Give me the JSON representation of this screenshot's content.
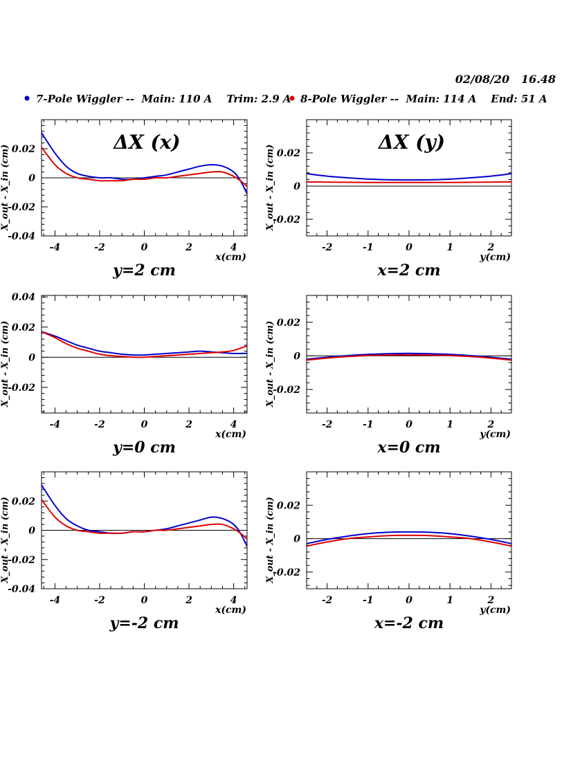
{
  "header": {
    "date_stamp": "02/08/20   16.48",
    "legend": [
      {
        "label": "7-Pole Wiggler --  Main: 110 A    Trim: 2.9 A",
        "color": "#0000cc"
      },
      {
        "label": "8-Pole Wiggler --  Main: 114 A    End: 51 A",
        "color": "#dd0000"
      }
    ]
  },
  "chart_data": [
    {
      "type": "line",
      "panel": "top-left",
      "title": "ΔX (x)",
      "caption": "y=2 cm",
      "xlabel": "x(cm)",
      "ylabel": "X_out - X_in (cm)",
      "xlim": [
        -4.6,
        4.6
      ],
      "ylim": [
        -0.04,
        0.04
      ],
      "xticks": [
        -4,
        -2,
        0,
        2,
        4
      ],
      "xtick_labels": [
        "-4",
        "-2",
        "0",
        "2",
        "4"
      ],
      "yticks": [
        -0.04,
        -0.02,
        0,
        0.02
      ],
      "ytick_labels": [
        "-0.04",
        "-0.02",
        "0",
        "0.02"
      ],
      "x": [
        -4.6,
        -4,
        -3.5,
        -3,
        -2.5,
        -2,
        -1.5,
        -1,
        -0.5,
        0,
        0.5,
        1,
        1.5,
        2,
        2.5,
        3,
        3.5,
        4,
        4.3,
        4.6
      ],
      "series": [
        {
          "name": "7-Pole Wiggler",
          "color": "#0000cc",
          "values": [
            0.031,
            0.017,
            0.008,
            0.003,
            0.001,
            0.0,
            0.0,
            -0.001,
            -0.001,
            0.0,
            0.001,
            0.002,
            0.004,
            0.006,
            0.008,
            0.009,
            0.008,
            0.004,
            -0.002,
            -0.011
          ]
        },
        {
          "name": "8-Pole Wiggler",
          "color": "#dd0000",
          "values": [
            0.021,
            0.009,
            0.003,
            0.0,
            -0.001,
            -0.002,
            -0.002,
            -0.002,
            -0.001,
            -0.001,
            0.0,
            0.0,
            0.001,
            0.002,
            0.003,
            0.004,
            0.004,
            0.001,
            -0.002,
            -0.006
          ]
        }
      ]
    },
    {
      "type": "line",
      "panel": "top-right",
      "title": "ΔX (y)",
      "caption": "x=2 cm",
      "xlabel": "y(cm)",
      "ylabel": "X_out - X_in (cm)",
      "xlim": [
        -2.5,
        2.5
      ],
      "ylim": [
        -0.03,
        0.04
      ],
      "xticks": [
        -2,
        -1,
        0,
        1,
        2
      ],
      "xtick_labels": [
        "-2",
        "-1",
        "0",
        "1",
        "2"
      ],
      "yticks": [
        -0.02,
        0,
        0.02
      ],
      "ytick_labels": [
        "-0.02",
        "0",
        "0.02"
      ],
      "x": [
        -2.5,
        -2,
        -1.5,
        -1,
        -0.5,
        0,
        0.5,
        1,
        1.5,
        2,
        2.5
      ],
      "series": [
        {
          "name": "7-Pole Wiggler",
          "color": "#0000cc",
          "values": [
            0.0075,
            0.006,
            0.005,
            0.0042,
            0.0038,
            0.0037,
            0.0038,
            0.0042,
            0.005,
            0.006,
            0.0075
          ]
        },
        {
          "name": "8-Pole Wiggler",
          "color": "#dd0000",
          "values": [
            0.0025,
            0.0024,
            0.0023,
            0.0022,
            0.0022,
            0.0022,
            0.0022,
            0.0022,
            0.0023,
            0.0024,
            0.0025
          ]
        }
      ]
    },
    {
      "type": "line",
      "panel": "middle-left",
      "title": "",
      "caption": "y=0 cm",
      "xlabel": "x(cm)",
      "ylabel": "X_out - X_in (cm)",
      "xlim": [
        -4.6,
        4.6
      ],
      "ylim": [
        -0.037,
        0.041
      ],
      "xticks": [
        -4,
        -2,
        0,
        2,
        4
      ],
      "xtick_labels": [
        "-4",
        "-2",
        "0",
        "2",
        "4"
      ],
      "yticks": [
        -0.02,
        0,
        0.02,
        0.04
      ],
      "ytick_labels": [
        "-0.02",
        "0",
        "0.02",
        "0.04"
      ],
      "x": [
        -4.6,
        -4,
        -3.5,
        -3,
        -2.5,
        -2,
        -1.5,
        -1,
        -0.5,
        0,
        0.5,
        1,
        1.5,
        2,
        2.5,
        3,
        3.5,
        4,
        4.3,
        4.6
      ],
      "series": [
        {
          "name": "7-Pole Wiggler",
          "color": "#0000cc",
          "values": [
            0.017,
            0.014,
            0.011,
            0.008,
            0.006,
            0.004,
            0.003,
            0.002,
            0.0015,
            0.0015,
            0.002,
            0.0025,
            0.003,
            0.0035,
            0.004,
            0.0035,
            0.003,
            0.0025,
            0.0025,
            0.0025
          ]
        },
        {
          "name": "8-Pole Wiggler",
          "color": "#dd0000",
          "values": [
            0.017,
            0.013,
            0.009,
            0.006,
            0.004,
            0.002,
            0.001,
            0.0005,
            0.0,
            0.0,
            0.0005,
            0.001,
            0.0015,
            0.002,
            0.0025,
            0.003,
            0.0035,
            0.0045,
            0.006,
            0.0075
          ]
        }
      ]
    },
    {
      "type": "line",
      "panel": "middle-right",
      "title": "",
      "caption": "x=0 cm",
      "xlabel": "y(cm)",
      "ylabel": "X_out - X_in (cm)",
      "xlim": [
        -2.5,
        2.5
      ],
      "ylim": [
        -0.034,
        0.036
      ],
      "xticks": [
        -2,
        -1,
        0,
        1,
        2
      ],
      "xtick_labels": [
        "-2",
        "-1",
        "0",
        "1",
        "2"
      ],
      "yticks": [
        -0.02,
        0,
        0.02
      ],
      "ytick_labels": [
        "-0.02",
        "0",
        "0.02"
      ],
      "x": [
        -2.5,
        -2,
        -1.5,
        -1,
        -0.5,
        0,
        0.5,
        1,
        1.5,
        2,
        2.5
      ],
      "series": [
        {
          "name": "7-Pole Wiggler",
          "color": "#0000cc",
          "values": [
            -0.002,
            -0.0008,
            0.0002,
            0.0009,
            0.0013,
            0.0015,
            0.0013,
            0.0009,
            0.0002,
            -0.0008,
            -0.002
          ]
        },
        {
          "name": "8-Pole Wiggler",
          "color": "#dd0000",
          "values": [
            -0.0025,
            -0.0013,
            -0.0004,
            0.0002,
            0.0005,
            0.0006,
            0.0005,
            0.0002,
            -0.0004,
            -0.0013,
            -0.0025
          ]
        }
      ]
    },
    {
      "type": "line",
      "panel": "bottom-left",
      "title": "",
      "caption": "y=-2 cm",
      "xlabel": "x(cm)",
      "ylabel": "X_out - X_in (cm)",
      "xlim": [
        -4.6,
        4.6
      ],
      "ylim": [
        -0.04,
        0.04
      ],
      "xticks": [
        -4,
        -2,
        0,
        2,
        4
      ],
      "xtick_labels": [
        "-4",
        "-2",
        "0",
        "2",
        "4"
      ],
      "yticks": [
        -0.04,
        -0.02,
        0,
        0.02
      ],
      "ytick_labels": [
        "-0.04",
        "-0.02",
        "0",
        "0.02"
      ],
      "x": [
        -4.6,
        -4,
        -3.5,
        -3,
        -2.5,
        -2,
        -1.5,
        -1,
        -0.5,
        0,
        0.5,
        1,
        1.5,
        2,
        2.5,
        3,
        3.5,
        4,
        4.3,
        4.6
      ],
      "series": [
        {
          "name": "7-Pole Wiggler",
          "color": "#0000cc",
          "values": [
            0.031,
            0.017,
            0.008,
            0.003,
            0.0,
            -0.001,
            -0.002,
            -0.002,
            -0.001,
            -0.001,
            0.0,
            0.001,
            0.003,
            0.005,
            0.007,
            0.009,
            0.008,
            0.004,
            -0.002,
            -0.011
          ]
        },
        {
          "name": "8-Pole Wiggler",
          "color": "#dd0000",
          "values": [
            0.021,
            0.009,
            0.003,
            0.0,
            -0.001,
            -0.002,
            -0.002,
            -0.002,
            -0.001,
            -0.001,
            0.0,
            0.0,
            0.001,
            0.002,
            0.003,
            0.004,
            0.004,
            0.001,
            -0.002,
            -0.006
          ]
        }
      ]
    },
    {
      "type": "line",
      "panel": "bottom-right",
      "title": "",
      "caption": "x=-2 cm",
      "xlabel": "y(cm)",
      "ylabel": "X_out - X_in (cm)",
      "xlim": [
        -2.5,
        2.5
      ],
      "ylim": [
        -0.03,
        0.04
      ],
      "xticks": [
        -2,
        -1,
        0,
        1,
        2
      ],
      "xtick_labels": [
        "-2",
        "-1",
        "0",
        "1",
        "2"
      ],
      "yticks": [
        -0.02,
        0,
        0.02
      ],
      "ytick_labels": [
        "-0.02",
        "0",
        "0.02"
      ],
      "x": [
        -2.5,
        -2,
        -1.5,
        -1,
        -0.5,
        0,
        0.5,
        1,
        1.5,
        2,
        2.5
      ],
      "series": [
        {
          "name": "7-Pole Wiggler",
          "color": "#0000cc",
          "values": [
            -0.003,
            -0.0005,
            0.0015,
            0.003,
            0.0038,
            0.004,
            0.0038,
            0.003,
            0.0015,
            -0.0005,
            -0.003
          ]
        },
        {
          "name": "8-Pole Wiggler",
          "color": "#dd0000",
          "values": [
            -0.0045,
            -0.002,
            0.0,
            0.001,
            0.0018,
            0.002,
            0.0018,
            0.001,
            0.0,
            -0.002,
            -0.0045
          ]
        }
      ]
    }
  ]
}
